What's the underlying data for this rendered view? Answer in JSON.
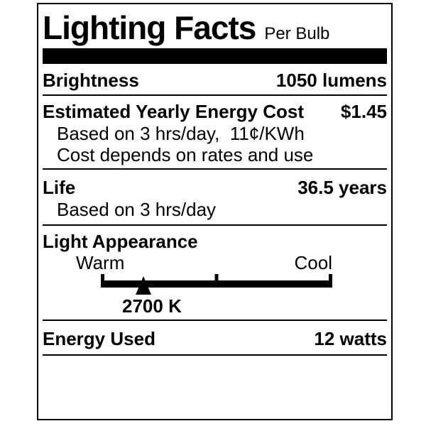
{
  "label": {
    "title": "Lighting Facts",
    "subtitle": "Per Bulb",
    "brightness": {
      "label": "Brightness",
      "value": "1050 lumens"
    },
    "energy_cost": {
      "label": "Estimated Yearly Energy Cost",
      "value": "$1.45",
      "note1": "Based on 3 hrs/day,  11¢/KWh",
      "note2": "Cost depends on rates and use"
    },
    "life": {
      "label": "Life",
      "value": "36.5 years",
      "note1": "Based on 3 hrs/day"
    },
    "light_appearance": {
      "label": "Light Appearance",
      "scale_left_label": "Warm",
      "scale_right_label": "Cool",
      "marker_label": "2700 K",
      "marker_left": "18.4%"
    },
    "energy_used": {
      "label": "Energy Used",
      "value": "12 watts"
    },
    "colors": {
      "ink": "#000000",
      "paper": "#ffffff"
    }
  }
}
